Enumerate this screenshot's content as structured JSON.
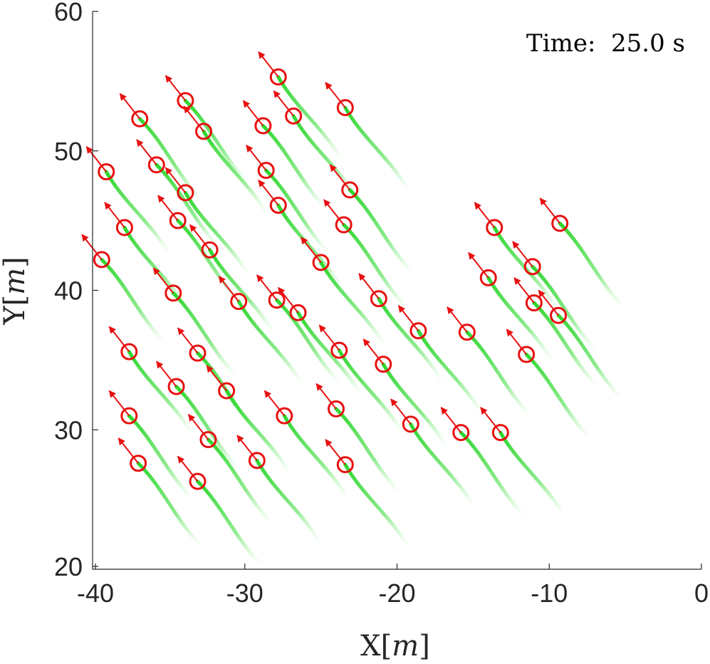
{
  "chart_data": {
    "type": "scatter",
    "annotation": "Time:  25.0 s",
    "xlabel": {
      "prefix": "X[",
      "unit": "m",
      "suffix": "]"
    },
    "ylabel": {
      "prefix": "Y[",
      "unit": "m",
      "suffix": "]"
    },
    "xlim": [
      -40,
      0
    ],
    "ylim": [
      20,
      60
    ],
    "xticks": [
      -40,
      -30,
      -20,
      -10,
      0
    ],
    "yticks": [
      20,
      30,
      40,
      50,
      60
    ],
    "xtick_labels": [
      "-40",
      "-30",
      "-20",
      "-10",
      "0"
    ],
    "ytick_labels": [
      "20",
      "30",
      "40",
      "50",
      "60"
    ],
    "grid": false,
    "colors": {
      "marker": "#e81010",
      "trail": "#2ad62a",
      "axis": "#262626"
    },
    "heading": {
      "dx": -1.3,
      "dy": 1.8
    },
    "trail_offset": {
      "dx": 4.2,
      "dy": -6.0
    },
    "points": [
      {
        "x": -27.8,
        "y": 55.3
      },
      {
        "x": -33.9,
        "y": 53.6
      },
      {
        "x": -23.4,
        "y": 53.1
      },
      {
        "x": -36.9,
        "y": 52.3
      },
      {
        "x": -26.8,
        "y": 52.5
      },
      {
        "x": -28.8,
        "y": 51.8
      },
      {
        "x": -32.7,
        "y": 51.4
      },
      {
        "x": -35.8,
        "y": 49.0
      },
      {
        "x": -39.1,
        "y": 48.5
      },
      {
        "x": -28.6,
        "y": 48.6
      },
      {
        "x": -33.9,
        "y": 47.0
      },
      {
        "x": -23.1,
        "y": 47.2
      },
      {
        "x": -27.8,
        "y": 46.1
      },
      {
        "x": -34.4,
        "y": 45.0
      },
      {
        "x": -37.9,
        "y": 44.5
      },
      {
        "x": -23.5,
        "y": 44.7
      },
      {
        "x": -13.6,
        "y": 44.5
      },
      {
        "x": -9.3,
        "y": 44.8
      },
      {
        "x": -32.3,
        "y": 42.9
      },
      {
        "x": -39.4,
        "y": 42.2
      },
      {
        "x": -25.0,
        "y": 42.0
      },
      {
        "x": -11.1,
        "y": 41.7
      },
      {
        "x": -14.0,
        "y": 40.9
      },
      {
        "x": -34.7,
        "y": 39.8
      },
      {
        "x": -30.4,
        "y": 39.2
      },
      {
        "x": -27.9,
        "y": 39.3
      },
      {
        "x": -21.2,
        "y": 39.4
      },
      {
        "x": -11.0,
        "y": 39.1
      },
      {
        "x": -26.5,
        "y": 38.4
      },
      {
        "x": -9.4,
        "y": 38.2
      },
      {
        "x": -18.6,
        "y": 37.1
      },
      {
        "x": -15.4,
        "y": 37.0
      },
      {
        "x": -37.6,
        "y": 35.6
      },
      {
        "x": -33.1,
        "y": 35.5
      },
      {
        "x": -23.8,
        "y": 35.7
      },
      {
        "x": -11.5,
        "y": 35.4
      },
      {
        "x": -20.9,
        "y": 34.7
      },
      {
        "x": -34.5,
        "y": 33.1
      },
      {
        "x": -31.2,
        "y": 32.8
      },
      {
        "x": -37.6,
        "y": 31.0
      },
      {
        "x": -27.4,
        "y": 31.0
      },
      {
        "x": -24.0,
        "y": 31.5
      },
      {
        "x": -19.1,
        "y": 30.4
      },
      {
        "x": -15.8,
        "y": 29.8
      },
      {
        "x": -13.2,
        "y": 29.8
      },
      {
        "x": -32.4,
        "y": 29.3
      },
      {
        "x": -29.2,
        "y": 27.8
      },
      {
        "x": -37.0,
        "y": 27.6
      },
      {
        "x": -23.4,
        "y": 27.5
      },
      {
        "x": -33.1,
        "y": 26.3
      }
    ]
  }
}
